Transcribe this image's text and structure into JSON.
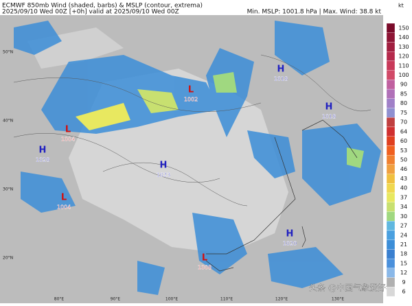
{
  "header": {
    "title": "ECMWF 850mb Wind (shaded, barbs) & MSLP (contour, extrema)",
    "subtitle": "2025/09/10 Wed 00Z [+0h] valid at 2025/09/10 Wed 00Z",
    "stats": "Min. MSLP: 1001.8 hPa | Max. Wind: 38.8 kt"
  },
  "map": {
    "lat_labels": [
      "50°N",
      "40°N",
      "30°N",
      "20°N"
    ],
    "lon_labels": [
      "80°E",
      "90°E",
      "100°E",
      "110°E",
      "120°E",
      "130°E"
    ],
    "centers": [
      {
        "type": "H",
        "value": 1018
      },
      {
        "type": "H",
        "value": 1018
      },
      {
        "type": "L",
        "value": 1002
      },
      {
        "type": "L",
        "value": 1004
      },
      {
        "type": "H",
        "value": 1028
      },
      {
        "type": "H",
        "value": 1023
      },
      {
        "type": "L",
        "value": 1004
      },
      {
        "type": "H",
        "value": 1020
      },
      {
        "type": "L",
        "value": 1008
      }
    ]
  },
  "colorbar": {
    "unit": "kt",
    "levels": [
      150,
      140,
      130,
      120,
      110,
      100,
      90,
      85,
      80,
      75,
      70,
      64,
      60,
      53,
      50,
      46,
      43,
      40,
      37,
      34,
      30,
      27,
      24,
      21,
      18,
      15,
      12,
      9,
      6
    ],
    "colors": [
      "#7a0b2a",
      "#8e1535",
      "#a11f40",
      "#b52a4c",
      "#c83a5a",
      "#d14a68",
      "#c060a0",
      "#b070b8",
      "#a080c8",
      "#9090d0",
      "#c04040",
      "#d03030",
      "#e04020",
      "#f06020",
      "#f08030",
      "#f0a040",
      "#f0c040",
      "#f0d850",
      "#e8e860",
      "#c8e070",
      "#a0d880",
      "#60b8e0",
      "#4aa0e0",
      "#3c8ed8",
      "#3a80d0",
      "#4a90dc",
      "#8ab8e8",
      "#b0b0b0",
      "#d8d8d8"
    ]
  },
  "watermark": "头条 @中国气象爱好者"
}
